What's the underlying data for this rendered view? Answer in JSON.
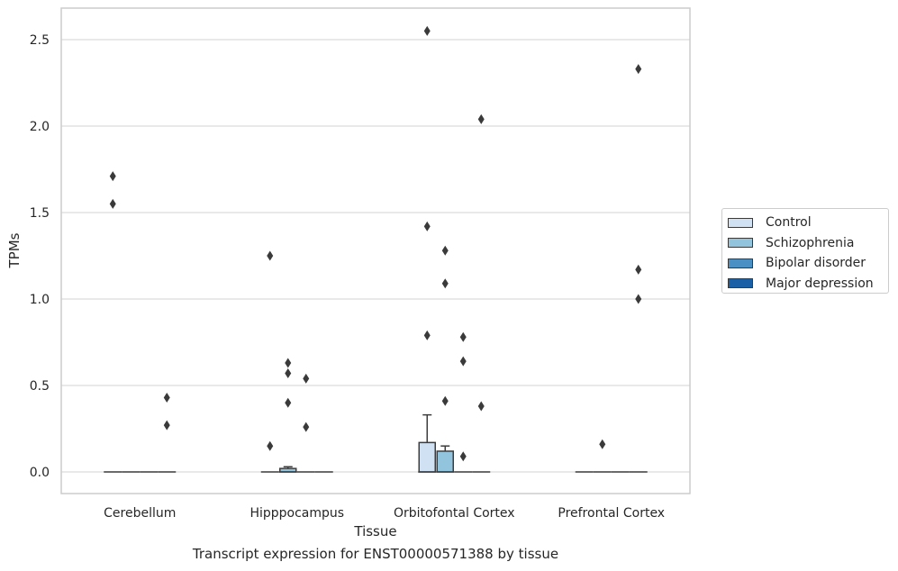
{
  "chart_data": {
    "type": "box",
    "categories": [
      "Cerebellum",
      "Hipppocampus",
      "Orbitofontal Cortex",
      "Prefrontal Cortex"
    ],
    "xlabel": "Tissue",
    "ylabel": "TPMs",
    "ylim": [
      -0.12,
      2.68
    ],
    "yticks": [
      0.0,
      0.5,
      1.0,
      1.5,
      2.0,
      2.5
    ],
    "ytick_labels": [
      "0.0",
      "0.5",
      "1.0",
      "1.5",
      "2.0",
      "2.5"
    ],
    "grid": "horizontal",
    "legend_position": "right",
    "series": [
      {
        "name": "Control",
        "color": "#cfe1f2",
        "boxes": [
          {
            "q1": 0,
            "median": 0,
            "q3": 0,
            "whisker_low": 0,
            "whisker_high": 0,
            "outliers": [
              1.71,
              1.55
            ]
          },
          {
            "q1": 0,
            "median": 0,
            "q3": 0,
            "whisker_low": 0,
            "whisker_high": 0,
            "outliers": [
              1.25,
              0.15
            ]
          },
          {
            "q1": 0,
            "median": 0,
            "q3": 0.17,
            "whisker_low": 0,
            "whisker_high": 0.33,
            "outliers": [
              2.55,
              1.42,
              0.79
            ]
          },
          {
            "q1": 0,
            "median": 0,
            "q3": 0,
            "whisker_low": 0,
            "whisker_high": 0,
            "outliers": []
          }
        ]
      },
      {
        "name": "Schizophrenia",
        "color": "#93c4de",
        "boxes": [
          {
            "q1": 0,
            "median": 0,
            "q3": 0,
            "whisker_low": 0,
            "whisker_high": 0,
            "outliers": []
          },
          {
            "q1": 0,
            "median": 0,
            "q3": 0.02,
            "whisker_low": 0,
            "whisker_high": 0.03,
            "outliers": [
              0.63,
              0.57,
              0.4
            ]
          },
          {
            "q1": 0,
            "median": 0,
            "q3": 0.12,
            "whisker_low": 0,
            "whisker_high": 0.15,
            "outliers": [
              1.28,
              1.09,
              0.41
            ]
          },
          {
            "q1": 0,
            "median": 0,
            "q3": 0,
            "whisker_low": 0,
            "whisker_high": 0,
            "outliers": [
              0.16
            ]
          }
        ]
      },
      {
        "name": "Bipolar disorder",
        "color": "#4a90c4",
        "boxes": [
          {
            "q1": 0,
            "median": 0,
            "q3": 0,
            "whisker_low": 0,
            "whisker_high": 0,
            "outliers": []
          },
          {
            "q1": 0,
            "median": 0,
            "q3": 0,
            "whisker_low": 0,
            "whisker_high": 0,
            "outliers": [
              0.54,
              0.26
            ]
          },
          {
            "q1": 0,
            "median": 0,
            "q3": 0,
            "whisker_low": 0,
            "whisker_high": 0,
            "outliers": [
              0.78,
              0.64,
              0.09
            ]
          },
          {
            "q1": 0,
            "median": 0,
            "q3": 0,
            "whisker_low": 0,
            "whisker_high": 0,
            "outliers": []
          }
        ]
      },
      {
        "name": "Major depression",
        "color": "#1a60a6",
        "boxes": [
          {
            "q1": 0,
            "median": 0,
            "q3": 0,
            "whisker_low": 0,
            "whisker_high": 0,
            "outliers": [
              0.43,
              0.27
            ]
          },
          {
            "q1": 0,
            "median": 0,
            "q3": 0,
            "whisker_low": 0,
            "whisker_high": 0,
            "outliers": []
          },
          {
            "q1": 0,
            "median": 0,
            "q3": 0,
            "whisker_low": 0,
            "whisker_high": 0,
            "outliers": [
              2.04,
              0.38
            ]
          },
          {
            "q1": 0,
            "median": 0,
            "q3": 0,
            "whisker_low": 0,
            "whisker_high": 0,
            "outliers": [
              2.33,
              1.17,
              1.0
            ]
          }
        ]
      }
    ],
    "caption": "Transcript expression for ENST00000571388 by tissue"
  }
}
